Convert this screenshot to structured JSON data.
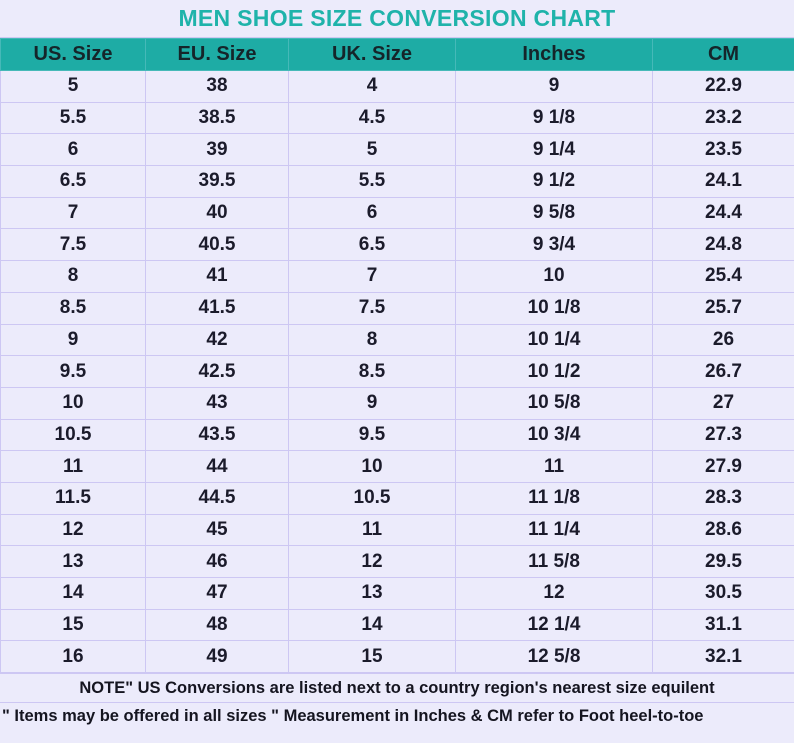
{
  "title": "MEN SHOE SIZE CONVERSION CHART",
  "colors": {
    "title": "#1fb3aa",
    "header_bg": "#1eaca5",
    "background": "#ecebfb",
    "border": "#cdc7f3"
  },
  "columns": [
    "US. Size",
    "EU. Size",
    "UK. Size",
    "Inches",
    "CM"
  ],
  "rows": [
    [
      "5",
      "38",
      "4",
      "9",
      "22.9"
    ],
    [
      "5.5",
      "38.5",
      "4.5",
      "9 1/8",
      "23.2"
    ],
    [
      "6",
      "39",
      "5",
      "9 1/4",
      "23.5"
    ],
    [
      "6.5",
      "39.5",
      "5.5",
      "9 1/2",
      "24.1"
    ],
    [
      "7",
      "40",
      "6",
      "9 5/8",
      "24.4"
    ],
    [
      "7.5",
      "40.5",
      "6.5",
      "9 3/4",
      "24.8"
    ],
    [
      "8",
      "41",
      "7",
      "10",
      "25.4"
    ],
    [
      "8.5",
      "41.5",
      "7.5",
      "10 1/8",
      "25.7"
    ],
    [
      "9",
      "42",
      "8",
      "10 1/4",
      "26"
    ],
    [
      "9.5",
      "42.5",
      "8.5",
      "10 1/2",
      "26.7"
    ],
    [
      "10",
      "43",
      "9",
      "10 5/8",
      "27"
    ],
    [
      "10.5",
      "43.5",
      "9.5",
      "10 3/4",
      "27.3"
    ],
    [
      "11",
      "44",
      "10",
      "11",
      "27.9"
    ],
    [
      "11.5",
      "44.5",
      "10.5",
      "11 1/8",
      "28.3"
    ],
    [
      "12",
      "45",
      "11",
      "11 1/4",
      "28.6"
    ],
    [
      "13",
      "46",
      "12",
      "11 5/8",
      "29.5"
    ],
    [
      "14",
      "47",
      "13",
      "12",
      "30.5"
    ],
    [
      "15",
      "48",
      "14",
      "12 1/4",
      "31.1"
    ],
    [
      "16",
      "49",
      "15",
      "12 5/8",
      "32.1"
    ]
  ],
  "notes": [
    "NOTE\" US Conversions are listed next to a country region's nearest size equilent",
    "\" Items may be offered in all sizes \" Measurement in Inches & CM refer to Foot heel-to-toe"
  ]
}
